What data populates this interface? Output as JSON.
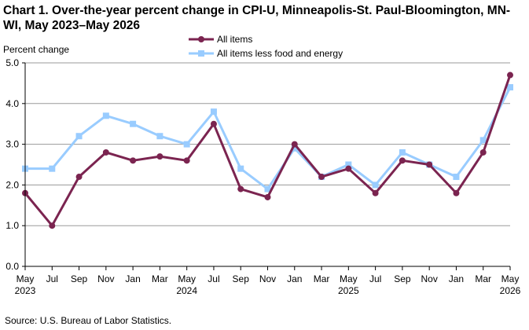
{
  "title": "Chart 1. Over-the-year percent change in CPI-U, Minneapolis-St. Paul-Bloomington, MN-WI, May 2023–May  2026",
  "source": "Source: U.S. Bureau of Labor Statistics.",
  "chart_data": {
    "type": "line",
    "ylabel": "Percent change",
    "ylim": [
      0,
      5
    ],
    "yticks": [
      "0.0",
      "1.0",
      "2.0",
      "3.0",
      "4.0",
      "5.0"
    ],
    "xtick_labels": [
      "May",
      "Jul",
      "Sep",
      "Nov",
      "Jan",
      "Mar",
      "May",
      "Jul",
      "Sep",
      "Nov",
      "Jan",
      "Mar",
      "May",
      "Jul",
      "Sep",
      "Nov",
      "Jan",
      "Mar",
      "May"
    ],
    "year_labels": [
      "2023",
      "2024",
      "2025",
      "2026"
    ],
    "grid": true,
    "legend_position": "top",
    "series": [
      {
        "name": "All items",
        "color": "#7b2450",
        "marker": "circle",
        "values": [
          1.8,
          1.0,
          2.2,
          2.8,
          2.6,
          2.7,
          2.6,
          3.5,
          1.9,
          1.7,
          3.0,
          2.2,
          2.4,
          1.8,
          2.6,
          2.5,
          1.8,
          2.8,
          4.7
        ]
      },
      {
        "name": "All items less food and energy",
        "color": "#99ccff",
        "marker": "square",
        "values": [
          2.4,
          2.4,
          3.2,
          3.7,
          3.5,
          3.2,
          3.0,
          3.8,
          2.4,
          1.9,
          2.9,
          2.2,
          2.5,
          2.0,
          2.8,
          2.5,
          2.2,
          3.1,
          4.4
        ]
      }
    ]
  }
}
